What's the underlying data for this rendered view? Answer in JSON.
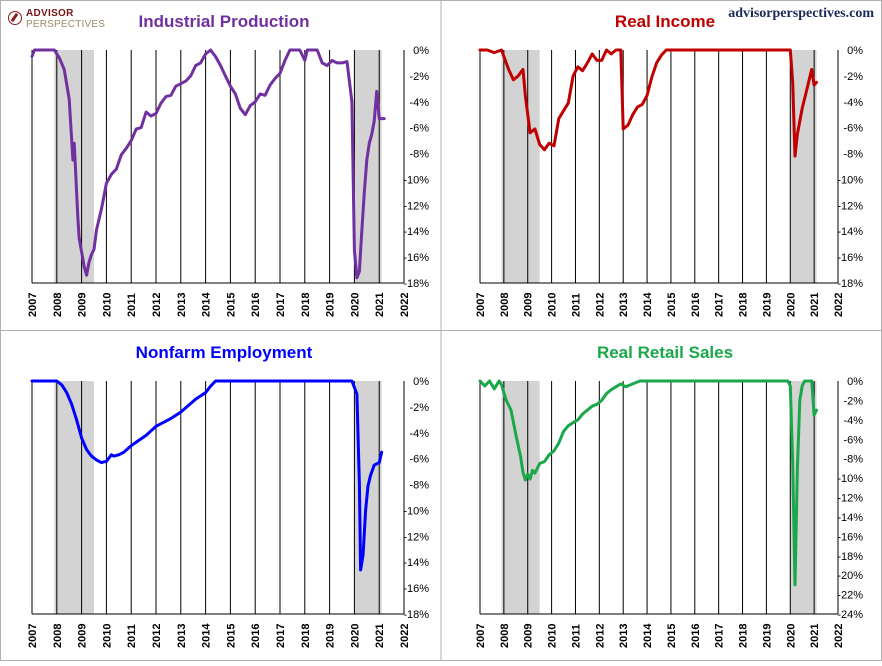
{
  "header": {
    "logo_line1": "ADVISOR",
    "logo_line2": "PERSPECTIVES",
    "site": "advisorperspectives.com"
  },
  "chart_data": [
    {
      "type": "line",
      "title": "Industrial Production",
      "color": "#7030a0",
      "xlim": [
        2007,
        2022
      ],
      "ylim": [
        -18,
        0
      ],
      "yticks": [
        0,
        -2,
        -4,
        -6,
        -8,
        -10,
        -12,
        -14,
        -16,
        -18
      ],
      "xticks": [
        2007,
        2008,
        2009,
        2010,
        2011,
        2012,
        2013,
        2014,
        2015,
        2016,
        2017,
        2018,
        2019,
        2020,
        2021,
        2022
      ],
      "recessions": [
        [
          2007.9,
          2009.5
        ],
        [
          2020.0,
          2021.1
        ]
      ],
      "x": [
        2007.0,
        2007.1,
        2007.3,
        2007.7,
        2007.9,
        2008.1,
        2008.3,
        2008.5,
        2008.65,
        2008.7,
        2008.75,
        2008.8,
        2008.85,
        2008.9,
        2009.0,
        2009.1,
        2009.2,
        2009.3,
        2009.4,
        2009.5,
        2009.6,
        2009.8,
        2010.0,
        2010.2,
        2010.4,
        2010.6,
        2010.8,
        2011.0,
        2011.2,
        2011.4,
        2011.6,
        2011.8,
        2012.0,
        2012.2,
        2012.4,
        2012.6,
        2012.8,
        2013.0,
        2013.2,
        2013.4,
        2013.6,
        2013.8,
        2014.0,
        2014.2,
        2014.4,
        2014.6,
        2014.8,
        2015.0,
        2015.2,
        2015.4,
        2015.6,
        2015.8,
        2016.0,
        2016.2,
        2016.4,
        2016.6,
        2016.8,
        2017.0,
        2017.2,
        2017.4,
        2017.6,
        2017.8,
        2018.0,
        2018.1,
        2018.3,
        2018.5,
        2018.7,
        2018.9,
        2019.1,
        2019.3,
        2019.5,
        2019.7,
        2019.9,
        2020.0,
        2020.1,
        2020.2,
        2020.3,
        2020.4,
        2020.5,
        2020.6,
        2020.7,
        2020.8,
        2020.9,
        2021.0,
        2021.1,
        2021.2
      ],
      "y": [
        -0.5,
        0,
        0,
        0,
        0,
        -0.6,
        -1.5,
        -3.8,
        -8.5,
        -7.2,
        -9.0,
        -11.0,
        -13.0,
        -14.5,
        -15.6,
        -16.7,
        -17.4,
        -16.4,
        -15.8,
        -15.4,
        -13.9,
        -12.3,
        -10.3,
        -9.6,
        -9.2,
        -8.1,
        -7.6,
        -7.0,
        -6.1,
        -6.0,
        -4.8,
        -5.1,
        -4.9,
        -4.1,
        -3.6,
        -3.5,
        -2.8,
        -2.6,
        -2.4,
        -2.0,
        -1.2,
        -1.0,
        -0.3,
        0,
        -0.5,
        -1.2,
        -2.0,
        -2.8,
        -3.4,
        -4.5,
        -5.0,
        -4.3,
        -4.0,
        -3.4,
        -3.5,
        -2.7,
        -2.2,
        -1.8,
        -0.8,
        0,
        0,
        0,
        -0.8,
        0,
        0,
        0,
        -1.0,
        -1.2,
        -0.8,
        -1.0,
        -1.0,
        -0.9,
        -4.0,
        -15.5,
        -17.6,
        -17.1,
        -14.0,
        -11.0,
        -8.5,
        -7.2,
        -6.5,
        -5.5,
        -3.2,
        -5.3,
        -5.3,
        -5.3
      ]
    },
    {
      "type": "line",
      "title": "Real Income",
      "color": "#c00000",
      "xlim": [
        2007,
        2022
      ],
      "ylim": [
        -18,
        0
      ],
      "yticks": [
        0,
        -2,
        -4,
        -6,
        -8,
        -10,
        -12,
        -14,
        -16,
        -18
      ],
      "xticks": [
        2007,
        2008,
        2009,
        2010,
        2011,
        2012,
        2013,
        2014,
        2015,
        2016,
        2017,
        2018,
        2019,
        2020,
        2021,
        2022
      ],
      "recessions": [
        [
          2007.9,
          2009.5
        ],
        [
          2020.0,
          2021.1
        ]
      ],
      "x": [
        2007.0,
        2007.3,
        2007.6,
        2007.9,
        2008.2,
        2008.4,
        2008.6,
        2008.8,
        2008.9,
        2009.1,
        2009.3,
        2009.5,
        2009.7,
        2009.9,
        2010.1,
        2010.3,
        2010.5,
        2010.7,
        2010.9,
        2011.1,
        2011.3,
        2011.5,
        2011.7,
        2011.9,
        2012.1,
        2012.3,
        2012.5,
        2012.7,
        2012.9,
        2013.0,
        2013.2,
        2013.4,
        2013.6,
        2013.8,
        2014.0,
        2014.2,
        2014.4,
        2014.6,
        2014.8,
        2015.0,
        2015.3,
        2015.6,
        2016.0,
        2016.5,
        2017.0,
        2017.5,
        2018.0,
        2018.5,
        2019.0,
        2019.5,
        2019.9,
        2020.0,
        2020.1,
        2020.2,
        2020.3,
        2020.5,
        2020.7,
        2020.9,
        2021.0,
        2021.1
      ],
      "y": [
        0,
        0,
        -0.2,
        0,
        -1.5,
        -2.3,
        -2.0,
        -1.5,
        -3.5,
        -6.4,
        -6.1,
        -7.3,
        -7.7,
        -7.2,
        -7.4,
        -5.3,
        -4.7,
        -4.1,
        -2.0,
        -1.3,
        -1.6,
        -1.0,
        -0.3,
        -0.8,
        -0.8,
        0,
        -0.3,
        0,
        0,
        -6.1,
        -5.8,
        -5.0,
        -4.4,
        -4.2,
        -3.5,
        -2.1,
        -1.0,
        -0.4,
        0,
        0,
        0,
        0,
        0,
        0,
        0,
        0,
        0,
        0,
        0,
        0,
        0,
        0,
        -2.5,
        -8.2,
        -6.5,
        -4.5,
        -3.0,
        -1.5,
        -2.7,
        -2.5
      ]
    },
    {
      "type": "line",
      "title": "Nonfarm Employment",
      "color": "#0000ff",
      "xlim": [
        2007,
        2022
      ],
      "ylim": [
        -18,
        0
      ],
      "yticks": [
        0,
        -2,
        -4,
        -6,
        -8,
        -10,
        -12,
        -14,
        -16,
        -18
      ],
      "xticks": [
        2007,
        2008,
        2009,
        2010,
        2011,
        2012,
        2013,
        2014,
        2015,
        2016,
        2017,
        2018,
        2019,
        2020,
        2021,
        2022
      ],
      "recessions": [
        [
          2007.9,
          2009.5
        ],
        [
          2020.0,
          2021.1
        ]
      ],
      "x": [
        2007.0,
        2007.5,
        2008.0,
        2008.2,
        2008.4,
        2008.6,
        2008.8,
        2009.0,
        2009.2,
        2009.4,
        2009.6,
        2009.8,
        2010.0,
        2010.2,
        2010.3,
        2010.5,
        2010.7,
        2011.0,
        2011.3,
        2011.6,
        2012.0,
        2012.3,
        2012.6,
        2013.0,
        2013.3,
        2013.6,
        2014.0,
        2014.2,
        2014.4,
        2015.0,
        2016.0,
        2017.0,
        2018.0,
        2019.0,
        2019.9,
        2020.1,
        2020.2,
        2020.25,
        2020.35,
        2020.45,
        2020.55,
        2020.65,
        2020.8,
        2021.0,
        2021.1
      ],
      "y": [
        0,
        0,
        0,
        -0.3,
        -0.9,
        -1.8,
        -3.0,
        -4.4,
        -5.3,
        -5.8,
        -6.1,
        -6.3,
        -6.2,
        -5.7,
        -5.8,
        -5.7,
        -5.5,
        -5.0,
        -4.6,
        -4.2,
        -3.5,
        -3.2,
        -2.9,
        -2.4,
        -1.9,
        -1.4,
        -0.9,
        -0.4,
        0,
        0,
        0,
        0,
        0,
        0,
        0,
        -1.0,
        -8.0,
        -14.6,
        -13.4,
        -10.0,
        -8.1,
        -7.3,
        -6.5,
        -6.3,
        -5.5
      ]
    },
    {
      "type": "line",
      "title": "Real Retail Sales",
      "color": "#1aa84a",
      "xlim": [
        2007,
        2022
      ],
      "ylim": [
        -24,
        0
      ],
      "yticks": [
        0,
        -2,
        -4,
        -6,
        -8,
        -10,
        -12,
        -14,
        -16,
        -18,
        -20,
        -22,
        -24
      ],
      "xticks": [
        2007,
        2008,
        2009,
        2010,
        2011,
        2012,
        2013,
        2014,
        2015,
        2016,
        2017,
        2018,
        2019,
        2020,
        2021,
        2022
      ],
      "recessions": [
        [
          2007.9,
          2009.5
        ],
        [
          2020.0,
          2021.1
        ]
      ],
      "x": [
        2007.0,
        2007.2,
        2007.4,
        2007.6,
        2007.8,
        2007.9,
        2008.1,
        2008.3,
        2008.5,
        2008.7,
        2008.8,
        2008.9,
        2009.0,
        2009.1,
        2009.2,
        2009.3,
        2009.5,
        2009.7,
        2009.9,
        2010.1,
        2010.3,
        2010.5,
        2010.7,
        2010.9,
        2011.1,
        2011.3,
        2011.5,
        2011.7,
        2011.9,
        2012.1,
        2012.3,
        2012.5,
        2012.7,
        2012.9,
        2013.1,
        2013.3,
        2013.5,
        2013.7,
        2014.0,
        2014.3,
        2014.6,
        2015.0,
        2015.5,
        2016.0,
        2016.5,
        2017.0,
        2017.5,
        2018.0,
        2018.5,
        2019.0,
        2019.5,
        2019.9,
        2020.0,
        2020.1,
        2020.2,
        2020.3,
        2020.4,
        2020.5,
        2020.6,
        2020.8,
        2020.9,
        2021.0,
        2021.1
      ],
      "y": [
        0,
        -0.5,
        0,
        -0.8,
        0,
        -0.4,
        -2.0,
        -3.0,
        -5.5,
        -7.8,
        -9.4,
        -10.2,
        -9.6,
        -10.1,
        -9.2,
        -9.5,
        -8.5,
        -8.3,
        -7.6,
        -7.2,
        -6.4,
        -5.2,
        -4.6,
        -4.3,
        -4.0,
        -3.4,
        -3.0,
        -2.6,
        -2.4,
        -2.0,
        -1.3,
        -0.9,
        -0.6,
        -0.3,
        -0.6,
        -0.4,
        -0.2,
        0,
        0,
        0,
        0,
        0,
        0,
        0,
        0,
        0,
        0,
        0,
        0,
        0,
        0,
        0,
        -0.5,
        -8.5,
        -21.0,
        -9.0,
        -2.0,
        -0.5,
        0,
        0,
        0,
        -3.5,
        -3.0
      ]
    }
  ]
}
